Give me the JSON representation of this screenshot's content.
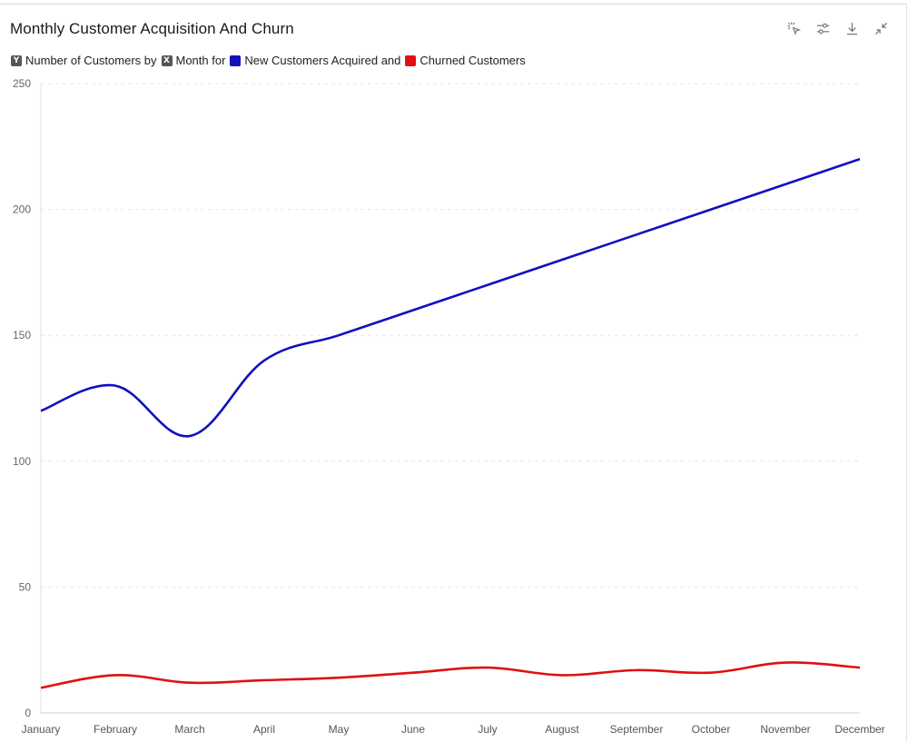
{
  "header": {
    "title": "Monthly Customer Acquisition And Churn"
  },
  "toolbar": {
    "icons": [
      "select-cursor-icon",
      "sliders-icon",
      "download-icon",
      "collapse-icon"
    ]
  },
  "legend": {
    "y_badge": "Y",
    "y_text": "Number of Customers by",
    "x_badge": "X",
    "x_text": "Month for",
    "series1_text": "New Customers Acquired and",
    "series2_text": "Churned Customers"
  },
  "colors": {
    "series1": "#1010c0",
    "series2": "#e01010",
    "axis_badge": "#555555",
    "grid": "#e6e6e6"
  },
  "chart_data": {
    "type": "line",
    "categories": [
      "January",
      "February",
      "March",
      "April",
      "May",
      "June",
      "July",
      "August",
      "September",
      "October",
      "November",
      "December"
    ],
    "series": [
      {
        "name": "New Customers Acquired",
        "values": [
          120,
          130,
          110,
          140,
          150,
          160,
          170,
          180,
          190,
          200,
          210,
          220
        ]
      },
      {
        "name": "Churned Customers",
        "values": [
          10,
          15,
          12,
          13,
          14,
          16,
          18,
          15,
          17,
          16,
          20,
          18
        ]
      }
    ],
    "ylim": [
      0,
      250
    ],
    "yticks": [
      0,
      50,
      100,
      150,
      200,
      250
    ],
    "grid": true,
    "legend_position": "top-left"
  }
}
